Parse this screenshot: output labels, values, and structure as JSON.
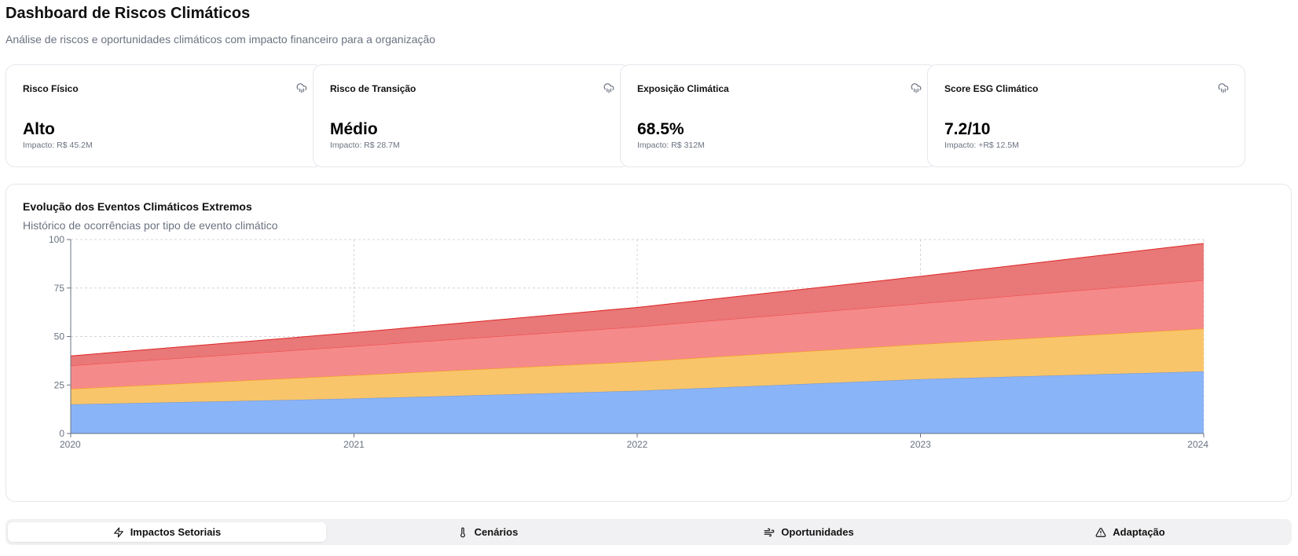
{
  "header": {
    "title": "Dashboard de Riscos Climáticos",
    "subtitle": "Análise de riscos e oportunidades climáticos com impacto financeiro para a organização"
  },
  "cards": [
    {
      "title": "Risco Físico",
      "value": "Alto",
      "impact": "Impacto: R$ 45.2M",
      "icon": "cloud-rain-icon"
    },
    {
      "title": "Risco de Transição",
      "value": "Médio",
      "impact": "Impacto: R$ 28.7M",
      "icon": "cloud-rain-icon"
    },
    {
      "title": "Exposição Climática",
      "value": "68.5%",
      "impact": "Impacto: R$ 312M",
      "icon": "cloud-rain-icon"
    },
    {
      "title": "Score ESG Climático",
      "value": "7.2/10",
      "impact": "Impacto: +R$ 12.5M",
      "icon": "cloud-rain-icon"
    }
  ],
  "chart_card": {
    "title": "Evolução dos Eventos Climáticos Extremos",
    "subtitle": "Histórico de ocorrências por tipo de evento climático"
  },
  "chart_data": {
    "type": "area",
    "stacked": true,
    "x": [
      "2020",
      "2021",
      "2022",
      "2023",
      "2024"
    ],
    "ylim": [
      0,
      100
    ],
    "yticks": [
      0,
      25,
      50,
      75,
      100
    ],
    "grid": true,
    "series": [
      {
        "values": [
          15,
          18,
          22,
          28,
          32
        ],
        "fill": "#8ab4f8",
        "stroke": "#6b93d6"
      },
      {
        "values": [
          8,
          12,
          15,
          18,
          22
        ],
        "fill": "#f8c56b",
        "stroke": "#f59e0b"
      },
      {
        "values": [
          12,
          15,
          18,
          21,
          25
        ],
        "fill": "#f58a8a",
        "stroke": "#ef4444"
      },
      {
        "values": [
          5,
          7,
          10,
          14,
          19
        ],
        "fill": "#e97878",
        "stroke": "#dc2626"
      }
    ]
  },
  "tabs": [
    {
      "label": "Impactos Setoriais",
      "icon": "zap-icon",
      "active": true
    },
    {
      "label": "Cenários",
      "icon": "thermometer-icon",
      "active": false
    },
    {
      "label": "Oportunidades",
      "icon": "wind-icon",
      "active": false
    },
    {
      "label": "Adaptação",
      "icon": "alert-triangle-icon",
      "active": false
    }
  ]
}
